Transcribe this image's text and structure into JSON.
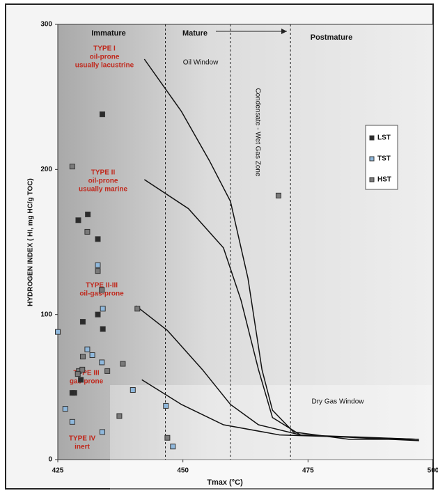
{
  "chart_data": {
    "type": "scatter",
    "xlabel": "Tmax (°C)",
    "ylabel": "HYDROGEN INDEX ( HI, mg HC/g TOC)",
    "xlim": [
      425,
      500
    ],
    "xticks": [
      425,
      450,
      475,
      500
    ],
    "ylim": [
      0,
      300
    ],
    "yticks": [
      0,
      100,
      200,
      300
    ],
    "legend": "right",
    "zone_bounds": [
      446.5,
      459.5,
      471.5
    ],
    "zones": [
      "Immature",
      "Mature",
      "Postmature",
      "Oil Window",
      "Condensate - Wet Gas Zone",
      "Dry Gas Window"
    ],
    "series": [
      {
        "name": "LST",
        "color": "#2b2b2b",
        "x": [
          433.9,
          429.1,
          431.0,
          433.0,
          433.0,
          430.0,
          434.0,
          428.3,
          427.9,
          429.6
        ],
        "values": [
          238,
          165,
          169,
          152,
          100,
          95,
          90,
          46,
          46,
          55
        ]
      },
      {
        "name": "TST",
        "color": "#8fb8dc",
        "x": [
          433.0,
          434.0,
          425.0,
          430.9,
          431.9,
          433.8,
          440.0,
          446.6,
          427.9,
          433.9,
          448.0,
          426.5
        ],
        "values": [
          134,
          104,
          88,
          76,
          72,
          67,
          48,
          37,
          26,
          19,
          9,
          35
        ]
      },
      {
        "name": "HST",
        "color": "#7a7a7a",
        "x": [
          427.9,
          469.1,
          430.9,
          433.0,
          433.8,
          440.9,
          430.0,
          438.0,
          434.9,
          429.2,
          429.9,
          429.0,
          437.3,
          446.9
        ],
        "values": [
          202,
          182,
          157,
          130,
          117,
          104,
          71,
          66,
          61,
          61,
          62,
          59,
          30,
          15
        ]
      }
    ],
    "curves": [
      {
        "label": [
          "TYPE I",
          "oil-prone",
          "usually lacustrine"
        ],
        "x": [
          442.3,
          449.7,
          455.3,
          459.5,
          463.0,
          465.8,
          467.9,
          472.1,
          483.2,
          497.2
        ],
        "y": [
          276,
          240,
          206,
          178,
          125,
          62,
          34,
          19,
          14,
          14
        ]
      },
      {
        "label": [
          "TYPE II",
          "oil-prone",
          "usually marine"
        ],
        "x": [
          442.3,
          451.1,
          458.1,
          461.6,
          465.1,
          467.9,
          473.5,
          497.2
        ],
        "y": [
          193,
          173,
          146,
          110,
          62,
          29,
          17,
          13
        ]
      },
      {
        "label": [
          "TYPE II-III",
          "oil-gas-prone"
        ],
        "x": [
          440.6,
          446.9,
          453.9,
          459.5,
          465.1,
          473.5,
          497.0
        ],
        "y": [
          106,
          89,
          62,
          38,
          24,
          17,
          14
        ]
      },
      {
        "label": [
          "TYPE III",
          "gas-prone"
        ],
        "x": [
          441.8,
          449.7,
          458.1,
          469.3,
          497.0
        ],
        "y": [
          55,
          38,
          24,
          17,
          14
        ]
      },
      {
        "label": [
          "TYPE IV",
          "inert"
        ],
        "x": [],
        "y": []
      }
    ]
  }
}
